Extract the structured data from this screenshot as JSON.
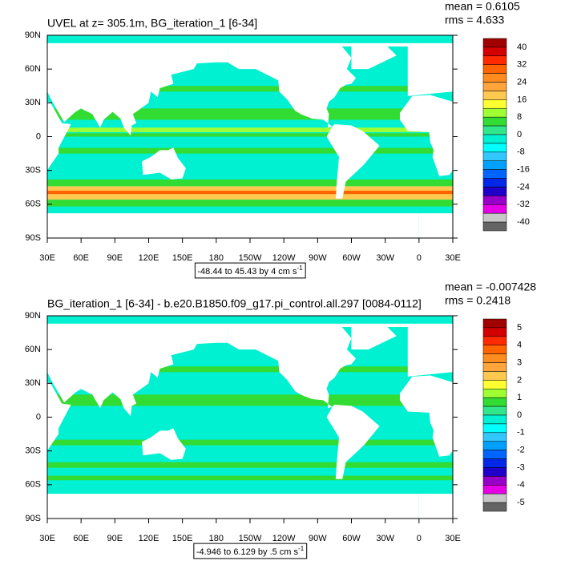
{
  "panels": [
    {
      "title": "UVEL at z= 305.1m, BG_iteration_1 [6-34]",
      "mean": "mean = 0.6105",
      "rms": "rms = 4.633",
      "lat_labels": [
        "90N",
        "60N",
        "30N",
        "0",
        "30S",
        "60S",
        "90S"
      ],
      "lon_labels": [
        "30E",
        "60E",
        "90E",
        "120E",
        "150E",
        "180",
        "150W",
        "120W",
        "90W",
        "60W",
        "30W",
        "0",
        "30E"
      ],
      "colorbar_labels": [
        "40",
        "32",
        "24",
        "16",
        "8",
        "0",
        "-8",
        "-16",
        "-24",
        "-32",
        "-40"
      ],
      "range_text": "-48.44 to 45.43 by 4 cm s",
      "range_exponent": "-1"
    },
    {
      "title": "BG_iteration_1 [6-34] - b.e20.B1850.f09_g17.pi_control.all.297 [0084-0112]",
      "mean": "mean = -0.007428",
      "rms": "rms = 0.2418",
      "lat_labels": [
        "90N",
        "60N",
        "30N",
        "0",
        "30S",
        "60S",
        "90S"
      ],
      "lon_labels": [
        "30E",
        "60E",
        "90E",
        "120E",
        "150E",
        "180",
        "150W",
        "120W",
        "90W",
        "60W",
        "30W",
        "0",
        "30E"
      ],
      "colorbar_labels": [
        "5",
        "4",
        "3",
        "2",
        "1",
        "0",
        "-1",
        "-2",
        "-3",
        "-4",
        "-5"
      ],
      "range_text": "-4.946 to 6.129 by .5 cm s",
      "range_exponent": "-1"
    }
  ]
}
